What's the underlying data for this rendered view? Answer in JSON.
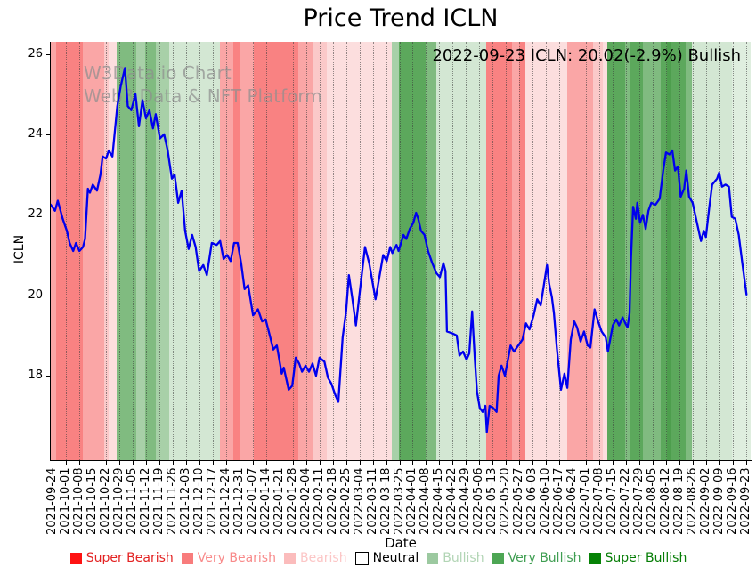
{
  "title": "Price Trend ICLN",
  "annotation": "2022-09-23 ICLN: 20.02(-2.9%) Bullish",
  "watermark": {
    "line1": "W3Data.io Chart",
    "line2": "Web3 Data & NFT Platform"
  },
  "colors": {
    "line": "#0000ee",
    "grid": "#3c3c3c",
    "spine": "#000000",
    "band_colors": {
      "r1": "#f98282",
      "r2": "#faa6a6",
      "r3": "#fbc9c9",
      "r4": "#fcdede",
      "g1": "#d3e7d3",
      "g1b": "#dfeedf",
      "g2": "#a8d0a8",
      "g3": "#80bb80",
      "g4": "#5ca85c",
      "g4d": "#4d9e4d"
    }
  },
  "legend": {
    "items": [
      {
        "label": "Super Bearish",
        "swatch": "#fe1212",
        "text": "#e32222",
        "border": "none"
      },
      {
        "label": "Very Bearish",
        "swatch": "#f87c7c",
        "text": "#f88a8a",
        "border": "none"
      },
      {
        "label": "Bearish",
        "swatch": "#fbbcbc",
        "text": "#fcc6c6",
        "border": "none"
      },
      {
        "label": "Neutral",
        "swatch": "#ffffff",
        "text": "#000000",
        "border": "#000000"
      },
      {
        "label": "Bullish",
        "swatch": "#9cc9a0",
        "text": "#b2d5b5",
        "border": "none"
      },
      {
        "label": "Very Bullish",
        "swatch": "#4da654",
        "text": "#3f9e52",
        "border": "none"
      },
      {
        "label": "Super Bullish",
        "swatch": "#068206",
        "text": "#067d06",
        "border": "none"
      }
    ]
  },
  "chart_data": {
    "type": "line",
    "title": "Price Trend ICLN",
    "xlabel": "Date",
    "ylabel": "ICLN",
    "ylim": [
      15.9,
      26.3
    ],
    "y_ticks": [
      18,
      20,
      22,
      24,
      26
    ],
    "x_tick_start_frac": 0.0025,
    "x_tick_end_frac": 0.9936,
    "x_ticks": [
      "2021-09-24",
      "2021-10-01",
      "2021-10-08",
      "2021-10-15",
      "2021-10-22",
      "2021-10-29",
      "2021-11-05",
      "2021-11-12",
      "2021-11-19",
      "2021-11-26",
      "2021-12-03",
      "2021-12-10",
      "2021-12-17",
      "2021-12-24",
      "2021-12-31",
      "2022-01-07",
      "2022-01-14",
      "2022-01-21",
      "2022-01-28",
      "2022-02-04",
      "2022-02-11",
      "2022-02-18",
      "2022-02-25",
      "2022-03-04",
      "2022-03-11",
      "2022-03-18",
      "2022-03-25",
      "2022-04-01",
      "2022-04-08",
      "2022-04-15",
      "2022-04-22",
      "2022-04-29",
      "2022-05-06",
      "2022-05-13",
      "2022-05-20",
      "2022-05-27",
      "2022-06-03",
      "2022-06-10",
      "2022-06-17",
      "2022-06-24",
      "2022-07-01",
      "2022-07-08",
      "2022-07-15",
      "2022-07-22",
      "2022-07-29",
      "2022-08-05",
      "2022-08-12",
      "2022-08-19",
      "2022-08-26",
      "2022-09-02",
      "2022-09-09",
      "2022-09-16",
      "2022-09-23"
    ],
    "grid": "vertical dotted at weekly ticks",
    "legend_position": "bottom",
    "x_unit": "fraction of x-axis from 2021-09-24 (0.0) to 2022-09-23 (1.0)",
    "series": [
      {
        "name": "ICLN",
        "color": "#0000ee",
        "points": [
          [
            0.0,
            22.25
          ],
          [
            0.006,
            22.1
          ],
          [
            0.01,
            22.35
          ],
          [
            0.017,
            21.9
          ],
          [
            0.023,
            21.6
          ],
          [
            0.027,
            21.3
          ],
          [
            0.032,
            21.1
          ],
          [
            0.036,
            21.3
          ],
          [
            0.041,
            21.1
          ],
          [
            0.046,
            21.2
          ],
          [
            0.049,
            21.4
          ],
          [
            0.053,
            22.65
          ],
          [
            0.056,
            22.55
          ],
          [
            0.06,
            22.75
          ],
          [
            0.066,
            22.6
          ],
          [
            0.071,
            23.0
          ],
          [
            0.074,
            23.45
          ],
          [
            0.079,
            23.4
          ],
          [
            0.083,
            23.6
          ],
          [
            0.088,
            23.45
          ],
          [
            0.095,
            24.7
          ],
          [
            0.1,
            25.2
          ],
          [
            0.106,
            25.65
          ],
          [
            0.11,
            24.7
          ],
          [
            0.115,
            24.6
          ],
          [
            0.121,
            25.0
          ],
          [
            0.126,
            24.2
          ],
          [
            0.131,
            24.85
          ],
          [
            0.136,
            24.4
          ],
          [
            0.141,
            24.6
          ],
          [
            0.146,
            24.15
          ],
          [
            0.15,
            24.5
          ],
          [
            0.156,
            23.9
          ],
          [
            0.162,
            24.0
          ],
          [
            0.167,
            23.6
          ],
          [
            0.173,
            22.9
          ],
          [
            0.177,
            23.0
          ],
          [
            0.182,
            22.3
          ],
          [
            0.187,
            22.6
          ],
          [
            0.192,
            21.6
          ],
          [
            0.197,
            21.15
          ],
          [
            0.202,
            21.5
          ],
          [
            0.207,
            21.2
          ],
          [
            0.212,
            20.6
          ],
          [
            0.218,
            20.75
          ],
          [
            0.223,
            20.5
          ],
          [
            0.23,
            21.3
          ],
          [
            0.237,
            21.25
          ],
          [
            0.242,
            21.35
          ],
          [
            0.247,
            20.9
          ],
          [
            0.252,
            21.0
          ],
          [
            0.257,
            20.85
          ],
          [
            0.262,
            21.3
          ],
          [
            0.267,
            21.3
          ],
          [
            0.272,
            20.8
          ],
          [
            0.277,
            20.15
          ],
          [
            0.282,
            20.25
          ],
          [
            0.289,
            19.5
          ],
          [
            0.296,
            19.65
          ],
          [
            0.302,
            19.35
          ],
          [
            0.307,
            19.4
          ],
          [
            0.313,
            19.0
          ],
          [
            0.318,
            18.65
          ],
          [
            0.323,
            18.75
          ],
          [
            0.33,
            18.05
          ],
          [
            0.333,
            18.2
          ],
          [
            0.34,
            17.65
          ],
          [
            0.345,
            17.75
          ],
          [
            0.35,
            18.45
          ],
          [
            0.355,
            18.3
          ],
          [
            0.359,
            18.1
          ],
          [
            0.364,
            18.25
          ],
          [
            0.369,
            18.1
          ],
          [
            0.374,
            18.3
          ],
          [
            0.379,
            18.0
          ],
          [
            0.384,
            18.45
          ],
          [
            0.391,
            18.35
          ],
          [
            0.396,
            17.95
          ],
          [
            0.401,
            17.8
          ],
          [
            0.407,
            17.5
          ],
          [
            0.411,
            17.35
          ],
          [
            0.417,
            18.95
          ],
          [
            0.422,
            19.6
          ],
          [
            0.426,
            20.5
          ],
          [
            0.431,
            19.9
          ],
          [
            0.436,
            19.25
          ],
          [
            0.441,
            20.0
          ],
          [
            0.449,
            21.2
          ],
          [
            0.455,
            20.8
          ],
          [
            0.464,
            19.9
          ],
          [
            0.471,
            20.6
          ],
          [
            0.475,
            21.0
          ],
          [
            0.48,
            20.85
          ],
          [
            0.485,
            21.2
          ],
          [
            0.488,
            21.05
          ],
          [
            0.494,
            21.25
          ],
          [
            0.497,
            21.1
          ],
          [
            0.504,
            21.5
          ],
          [
            0.508,
            21.4
          ],
          [
            0.513,
            21.65
          ],
          [
            0.518,
            21.8
          ],
          [
            0.522,
            22.05
          ],
          [
            0.525,
            21.9
          ],
          [
            0.529,
            21.6
          ],
          [
            0.534,
            21.5
          ],
          [
            0.539,
            21.1
          ],
          [
            0.545,
            20.8
          ],
          [
            0.551,
            20.55
          ],
          [
            0.556,
            20.45
          ],
          [
            0.561,
            20.8
          ],
          [
            0.564,
            20.6
          ],
          [
            0.566,
            19.1
          ],
          [
            0.574,
            19.05
          ],
          [
            0.58,
            19.0
          ],
          [
            0.584,
            18.5
          ],
          [
            0.589,
            18.6
          ],
          [
            0.594,
            18.4
          ],
          [
            0.598,
            18.55
          ],
          [
            0.602,
            19.6
          ],
          [
            0.606,
            18.4
          ],
          [
            0.609,
            17.6
          ],
          [
            0.613,
            17.2
          ],
          [
            0.617,
            17.1
          ],
          [
            0.621,
            17.25
          ],
          [
            0.623,
            16.6
          ],
          [
            0.627,
            17.25
          ],
          [
            0.632,
            17.2
          ],
          [
            0.637,
            17.1
          ],
          [
            0.64,
            18.0
          ],
          [
            0.644,
            18.25
          ],
          [
            0.649,
            18.0
          ],
          [
            0.657,
            18.75
          ],
          [
            0.662,
            18.6
          ],
          [
            0.668,
            18.75
          ],
          [
            0.674,
            18.9
          ],
          [
            0.679,
            19.3
          ],
          [
            0.684,
            19.15
          ],
          [
            0.69,
            19.5
          ],
          [
            0.695,
            19.9
          ],
          [
            0.7,
            19.75
          ],
          [
            0.705,
            20.3
          ],
          [
            0.709,
            20.75
          ],
          [
            0.712,
            20.3
          ],
          [
            0.716,
            19.95
          ],
          [
            0.719,
            19.55
          ],
          [
            0.723,
            18.7
          ],
          [
            0.729,
            17.65
          ],
          [
            0.734,
            18.05
          ],
          [
            0.738,
            17.7
          ],
          [
            0.743,
            18.9
          ],
          [
            0.748,
            19.35
          ],
          [
            0.752,
            19.2
          ],
          [
            0.757,
            18.85
          ],
          [
            0.762,
            19.1
          ],
          [
            0.767,
            18.75
          ],
          [
            0.771,
            18.7
          ],
          [
            0.777,
            19.65
          ],
          [
            0.782,
            19.35
          ],
          [
            0.787,
            19.1
          ],
          [
            0.793,
            18.95
          ],
          [
            0.796,
            18.6
          ],
          [
            0.803,
            19.25
          ],
          [
            0.808,
            19.4
          ],
          [
            0.812,
            19.25
          ],
          [
            0.817,
            19.45
          ],
          [
            0.821,
            19.3
          ],
          [
            0.824,
            19.2
          ],
          [
            0.827,
            19.55
          ],
          [
            0.829,
            20.9
          ],
          [
            0.832,
            22.2
          ],
          [
            0.836,
            21.9
          ],
          [
            0.838,
            22.3
          ],
          [
            0.842,
            21.8
          ],
          [
            0.846,
            22.0
          ],
          [
            0.85,
            21.65
          ],
          [
            0.854,
            22.1
          ],
          [
            0.858,
            22.3
          ],
          [
            0.864,
            22.25
          ],
          [
            0.87,
            22.4
          ],
          [
            0.875,
            23.1
          ],
          [
            0.879,
            23.55
          ],
          [
            0.884,
            23.5
          ],
          [
            0.888,
            23.6
          ],
          [
            0.892,
            23.1
          ],
          [
            0.896,
            23.2
          ],
          [
            0.9,
            22.45
          ],
          [
            0.905,
            22.65
          ],
          [
            0.908,
            23.1
          ],
          [
            0.912,
            22.45
          ],
          [
            0.917,
            22.3
          ],
          [
            0.922,
            21.9
          ],
          [
            0.929,
            21.35
          ],
          [
            0.933,
            21.6
          ],
          [
            0.936,
            21.45
          ],
          [
            0.941,
            22.2
          ],
          [
            0.945,
            22.75
          ],
          [
            0.952,
            22.9
          ],
          [
            0.955,
            23.05
          ],
          [
            0.959,
            22.7
          ],
          [
            0.964,
            22.75
          ],
          [
            0.969,
            22.7
          ],
          [
            0.973,
            21.95
          ],
          [
            0.978,
            21.9
          ],
          [
            0.983,
            21.5
          ],
          [
            0.988,
            20.8
          ],
          [
            0.994,
            20.02
          ]
        ]
      }
    ],
    "bands": [
      {
        "x0": 0.0,
        "x1": 0.008,
        "c": "r2",
        "s": "Very Bearish"
      },
      {
        "x0": 0.008,
        "x1": 0.046,
        "c": "r1",
        "s": "Super Bearish"
      },
      {
        "x0": 0.046,
        "x1": 0.076,
        "c": "r2",
        "s": "Very Bearish"
      },
      {
        "x0": 0.076,
        "x1": 0.083,
        "c": "r3",
        "s": "Bearish"
      },
      {
        "x0": 0.083,
        "x1": 0.094,
        "c": "r4",
        "s": "Bearish"
      },
      {
        "x0": 0.094,
        "x1": 0.122,
        "c": "g3",
        "s": "Very Bullish"
      },
      {
        "x0": 0.122,
        "x1": 0.135,
        "c": "g2",
        "s": "Bullish"
      },
      {
        "x0": 0.135,
        "x1": 0.15,
        "c": "g3",
        "s": "Very Bullish"
      },
      {
        "x0": 0.15,
        "x1": 0.169,
        "c": "g2",
        "s": "Bullish"
      },
      {
        "x0": 0.169,
        "x1": 0.242,
        "c": "g1",
        "s": "Bullish"
      },
      {
        "x0": 0.242,
        "x1": 0.261,
        "c": "r2",
        "s": "Very Bearish"
      },
      {
        "x0": 0.261,
        "x1": 0.271,
        "c": "r1",
        "s": "Super Bearish"
      },
      {
        "x0": 0.271,
        "x1": 0.29,
        "c": "r2",
        "s": "Very Bearish"
      },
      {
        "x0": 0.29,
        "x1": 0.354,
        "c": "r1",
        "s": "Super Bearish"
      },
      {
        "x0": 0.354,
        "x1": 0.375,
        "c": "r2",
        "s": "Very Bearish"
      },
      {
        "x0": 0.375,
        "x1": 0.394,
        "c": "r3",
        "s": "Bearish"
      },
      {
        "x0": 0.394,
        "x1": 0.487,
        "c": "r4",
        "s": "Bearish"
      },
      {
        "x0": 0.487,
        "x1": 0.497,
        "c": "g2",
        "s": "Bullish"
      },
      {
        "x0": 0.497,
        "x1": 0.536,
        "c": "g4",
        "s": "Super Bullish"
      },
      {
        "x0": 0.536,
        "x1": 0.551,
        "c": "g3",
        "s": "Very Bullish"
      },
      {
        "x0": 0.551,
        "x1": 0.622,
        "c": "g1",
        "s": "Bullish"
      },
      {
        "x0": 0.622,
        "x1": 0.659,
        "c": "r1",
        "s": "Super Bearish"
      },
      {
        "x0": 0.659,
        "x1": 0.669,
        "c": "r2",
        "s": "Very Bearish"
      },
      {
        "x0": 0.669,
        "x1": 0.678,
        "c": "r1",
        "s": "Super Bearish"
      },
      {
        "x0": 0.678,
        "x1": 0.738,
        "c": "r4",
        "s": "Bearish"
      },
      {
        "x0": 0.738,
        "x1": 0.775,
        "c": "r2",
        "s": "Very Bearish"
      },
      {
        "x0": 0.775,
        "x1": 0.789,
        "c": "r3",
        "s": "Bearish"
      },
      {
        "x0": 0.789,
        "x1": 0.795,
        "c": "r4",
        "s": "Bearish"
      },
      {
        "x0": 0.795,
        "x1": 0.821,
        "c": "g4",
        "s": "Super Bullish"
      },
      {
        "x0": 0.821,
        "x1": 0.827,
        "c": "g3",
        "s": "Very Bullish"
      },
      {
        "x0": 0.827,
        "x1": 0.846,
        "c": "g4",
        "s": "Super Bullish"
      },
      {
        "x0": 0.846,
        "x1": 0.872,
        "c": "g3",
        "s": "Very Bullish"
      },
      {
        "x0": 0.872,
        "x1": 0.88,
        "c": "g4",
        "s": "Super Bullish"
      },
      {
        "x0": 0.88,
        "x1": 0.886,
        "c": "g4d",
        "s": "Super Bullish"
      },
      {
        "x0": 0.886,
        "x1": 0.907,
        "c": "g4",
        "s": "Super Bullish"
      },
      {
        "x0": 0.907,
        "x1": 0.916,
        "c": "g3",
        "s": "Very Bullish"
      },
      {
        "x0": 0.916,
        "x1": 0.973,
        "c": "g1",
        "s": "Bullish"
      },
      {
        "x0": 0.973,
        "x1": 1.0,
        "c": "g1b",
        "s": "Bullish"
      }
    ]
  }
}
